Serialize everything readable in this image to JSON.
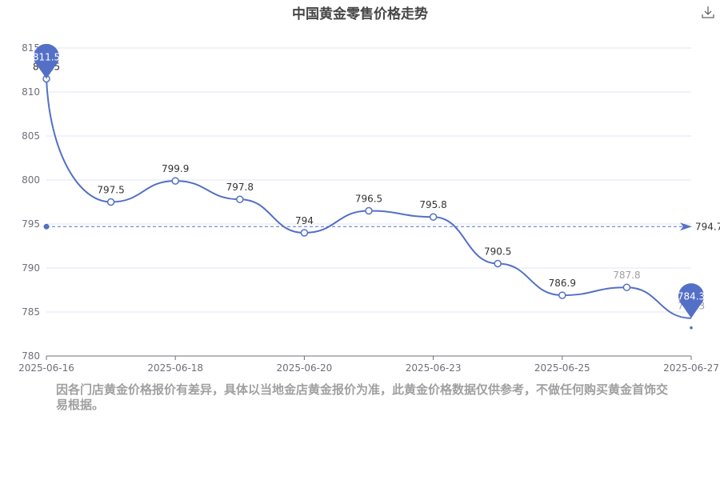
{
  "chart_data": {
    "type": "line",
    "title": "中国黄金零售价格走势",
    "xlabel": "",
    "ylabel": "",
    "ylim": [
      780,
      815
    ],
    "yticks": [
      780,
      785,
      790,
      795,
      800,
      805,
      810,
      815
    ],
    "x_tick_labels": [
      "2025-06-16",
      "2025-06-18",
      "2025-06-20",
      "2025-06-23",
      "2025-06-25",
      "2025-06-27"
    ],
    "points": [
      {
        "label": "811.5",
        "value": 811.5
      },
      {
        "label": "797.5",
        "value": 797.5
      },
      {
        "label": "799.9",
        "value": 799.9
      },
      {
        "label": "797.8",
        "value": 797.8
      },
      {
        "label": "794",
        "value": 794
      },
      {
        "label": "796.5",
        "value": 796.5
      },
      {
        "label": "795.8",
        "value": 795.8
      },
      {
        "label": "790.5",
        "value": 790.5
      },
      {
        "label": "786.9",
        "value": 786.9
      },
      {
        "label": "787.8",
        "value": 787.8
      },
      {
        "label": "784.3",
        "value": 784.3
      }
    ],
    "max_marker": {
      "label": "811.5",
      "value": 811.5
    },
    "min_marker": {
      "label": "784.3",
      "value": 784.3
    },
    "average_line": {
      "label": "794.7",
      "value": 794.7
    },
    "grid": true,
    "colors": {
      "line": "#5470c6",
      "grid": "#e0e6f1",
      "axis": "#6e7079"
    }
  },
  "disclaimer": "因各门店黄金价格报价有差异，具体以当地金店黄金报价为准，此黄金价格数据仅供参考，不做任何购买黄金首饰交易根据。",
  "toolbar": {
    "download_icon": "download-icon"
  }
}
